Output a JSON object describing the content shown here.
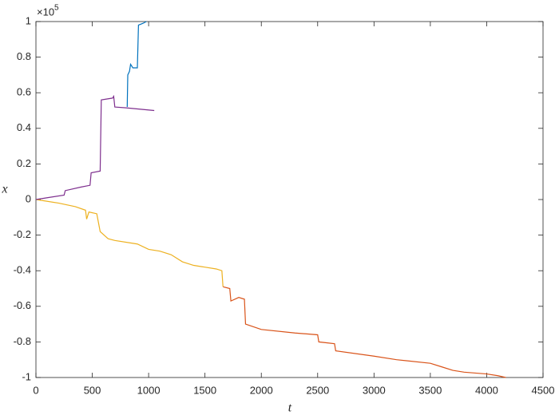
{
  "chart_data": {
    "type": "line",
    "x_label": "t",
    "y_label": "x",
    "y_exponent_base": "×10",
    "y_exponent": "5",
    "xlim": [
      0,
      4500
    ],
    "xticks": [
      0,
      500,
      1000,
      1500,
      2000,
      2500,
      3000,
      3500,
      4000,
      4500
    ],
    "ylim": [
      -1,
      1
    ],
    "yticks": [
      -1,
      -0.8,
      -0.6,
      -0.4,
      -0.2,
      0,
      0.2,
      0.4,
      0.6,
      0.8,
      1
    ],
    "grid": false,
    "box": true,
    "series": [
      {
        "color": "#0072BD",
        "x": [
          810,
          815,
          830,
          840,
          860,
          900,
          910,
          950,
          980
        ],
        "values": [
          0.52,
          0.7,
          0.72,
          0.76,
          0.74,
          0.74,
          0.98,
          0.99,
          1.0
        ]
      },
      {
        "color": "#D95319",
        "x": [
          1660,
          1720,
          1730,
          1800,
          1850,
          1860,
          2000,
          2300,
          2500,
          2510,
          2650,
          2660,
          3000,
          3200,
          3500,
          3600,
          3700,
          3800,
          4000,
          4100,
          4170
        ],
        "values": [
          -0.49,
          -0.5,
          -0.57,
          -0.55,
          -0.56,
          -0.7,
          -0.73,
          -0.75,
          -0.76,
          -0.8,
          -0.81,
          -0.85,
          -0.88,
          -0.9,
          -0.92,
          -0.94,
          -0.96,
          -0.97,
          -0.98,
          -0.99,
          -1.0
        ]
      },
      {
        "color": "#EDB120",
        "x": [
          0,
          200,
          350,
          440,
          450,
          470,
          540,
          570,
          640,
          700,
          900,
          1000,
          1100,
          1200,
          1300,
          1400,
          1600,
          1650,
          1660
        ],
        "values": [
          0,
          -0.02,
          -0.04,
          -0.06,
          -0.11,
          -0.07,
          -0.08,
          -0.18,
          -0.22,
          -0.23,
          -0.25,
          -0.28,
          -0.29,
          -0.31,
          -0.35,
          -0.37,
          -0.39,
          -0.4,
          -0.49
        ]
      },
      {
        "color": "#7E2F8E",
        "x": [
          0,
          100,
          250,
          260,
          400,
          480,
          490,
          570,
          580,
          680,
          690,
          700,
          800,
          1050
        ],
        "values": [
          0,
          0.01,
          0.025,
          0.05,
          0.07,
          0.08,
          0.15,
          0.16,
          0.56,
          0.57,
          0.58,
          0.52,
          0.515,
          0.5
        ]
      }
    ]
  }
}
